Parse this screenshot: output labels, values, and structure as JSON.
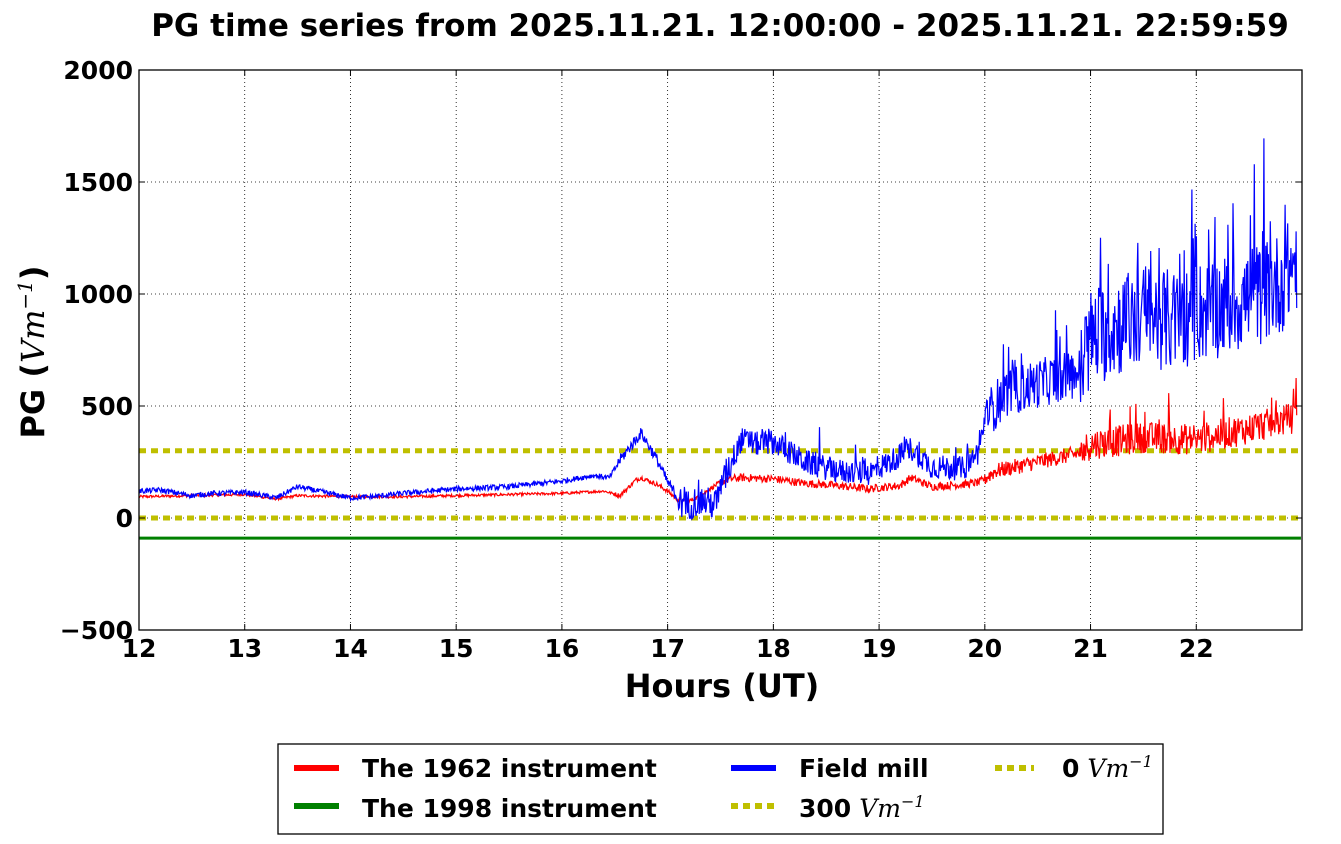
{
  "chart_data": {
    "type": "line",
    "title": "PG time series from 2025.11.21. 12:00:00 - 2025.11.21. 22:59:59",
    "xlabel": "Hours (UT)",
    "ylabel": {
      "text": "PG (",
      "unit": "Vm",
      "exp": "−1",
      "close": ")"
    },
    "xlim": [
      12,
      23
    ],
    "ylim": [
      -500,
      2000
    ],
    "xticks": [
      "12",
      "13",
      "14",
      "15",
      "16",
      "17",
      "18",
      "19",
      "20",
      "21",
      "22"
    ],
    "yticks": [
      "−500",
      "0",
      "500",
      "1000",
      "1500",
      "2000"
    ],
    "grid": true,
    "legend_position": "bottom-center",
    "series": [
      {
        "name": "The 1962 instrument",
        "color": "#ff0000",
        "x": [
          12.0,
          12.5,
          13.0,
          13.3,
          13.5,
          14.0,
          14.5,
          15.0,
          15.5,
          16.0,
          16.4,
          16.55,
          16.7,
          16.75,
          16.9,
          17.0,
          17.1,
          17.2,
          17.3,
          17.4,
          17.5,
          17.6,
          17.7,
          18.0,
          18.3,
          18.6,
          18.9,
          19.2,
          19.3,
          19.5,
          19.8,
          19.95,
          20.1,
          20.5,
          20.9,
          21.0,
          21.2,
          21.5,
          22.0,
          22.5,
          22.95
        ],
        "y": [
          95,
          100,
          105,
          85,
          100,
          95,
          95,
          100,
          105,
          110,
          120,
          100,
          170,
          180,
          150,
          120,
          80,
          75,
          95,
          130,
          160,
          175,
          180,
          175,
          155,
          145,
          130,
          145,
          180,
          140,
          150,
          160,
          210,
          250,
          290,
          330,
          340,
          360,
          350,
          400,
          450
        ]
      },
      {
        "name": "The 1998 instrument",
        "color": "#008000",
        "x": [
          12.0,
          22.99
        ],
        "y": [
          -90,
          -90
        ]
      },
      {
        "name": "Field mill",
        "color": "#0000ff",
        "x": [
          12.0,
          12.2,
          12.5,
          12.7,
          13.0,
          13.3,
          13.5,
          13.8,
          14.0,
          14.2,
          14.5,
          15.0,
          15.3,
          15.5,
          16.0,
          16.3,
          16.45,
          16.55,
          16.75,
          16.9,
          17.0,
          17.15,
          17.3,
          17.45,
          17.6,
          17.7,
          17.85,
          18.0,
          18.3,
          18.6,
          18.9,
          19.1,
          19.3,
          19.5,
          19.8,
          19.95,
          20.0,
          20.2,
          20.5,
          20.9,
          21.0,
          21.2,
          21.5,
          21.8,
          22.0,
          22.3,
          22.6,
          22.8,
          22.95
        ],
        "y": [
          120,
          125,
          100,
          110,
          115,
          90,
          140,
          110,
          90,
          95,
          110,
          130,
          135,
          140,
          165,
          190,
          180,
          260,
          380,
          260,
          160,
          50,
          80,
          60,
          250,
          350,
          330,
          340,
          250,
          210,
          200,
          250,
          310,
          230,
          220,
          300,
          450,
          560,
          600,
          650,
          800,
          850,
          900,
          880,
          920,
          950,
          1000,
          1050,
          1150
        ]
      },
      {
        "name": "300 Vm−1",
        "label": {
          "text": "300",
          "unit": "Vm",
          "exp": "−1"
        },
        "color": "#bfbf00",
        "style": "dotted",
        "x": [
          12.0,
          22.99
        ],
        "y": [
          300,
          300
        ]
      },
      {
        "name": "0 Vm−1",
        "label": {
          "text": "0",
          "unit": "Vm",
          "exp": "−1"
        },
        "color": "#bfbf00",
        "style": "dotted",
        "x": [
          12.0,
          22.99
        ],
        "y": [
          0,
          0
        ]
      }
    ]
  }
}
